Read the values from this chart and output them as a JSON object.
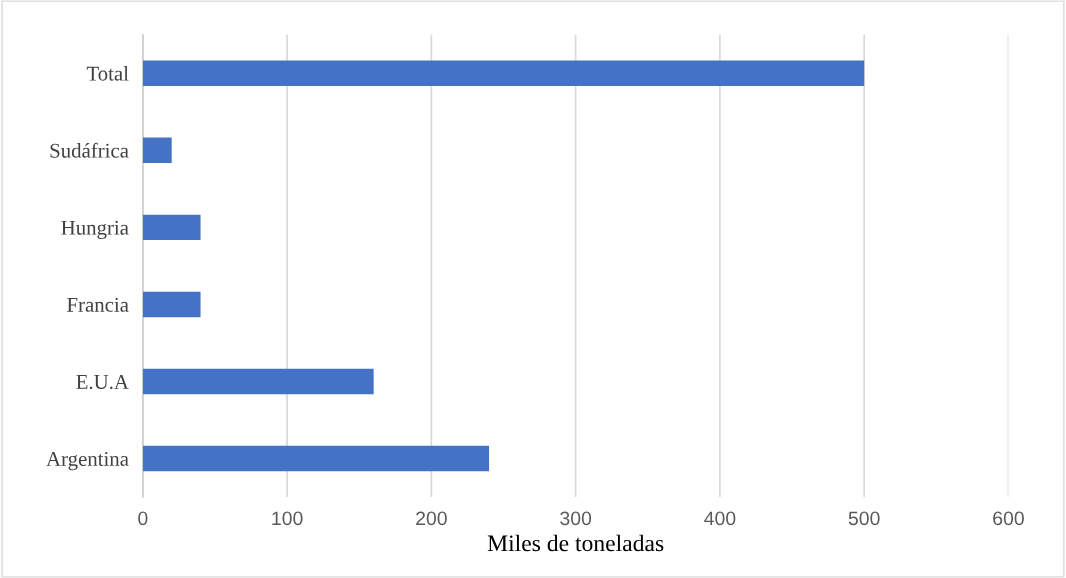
{
  "chart_data": {
    "type": "bar",
    "orientation": "horizontal",
    "xlabel": "Miles de toneladas",
    "categories": [
      "Total",
      "Sudáfrica",
      "Hungria",
      "Francia",
      "E.U.A",
      "Argentina"
    ],
    "values": [
      500,
      20,
      40,
      40,
      160,
      240
    ],
    "color": "#4472c4",
    "xlim": [
      0,
      600
    ],
    "xticks": [
      0,
      100,
      200,
      300,
      400,
      500,
      600
    ],
    "grid": "x",
    "legend": false
  }
}
